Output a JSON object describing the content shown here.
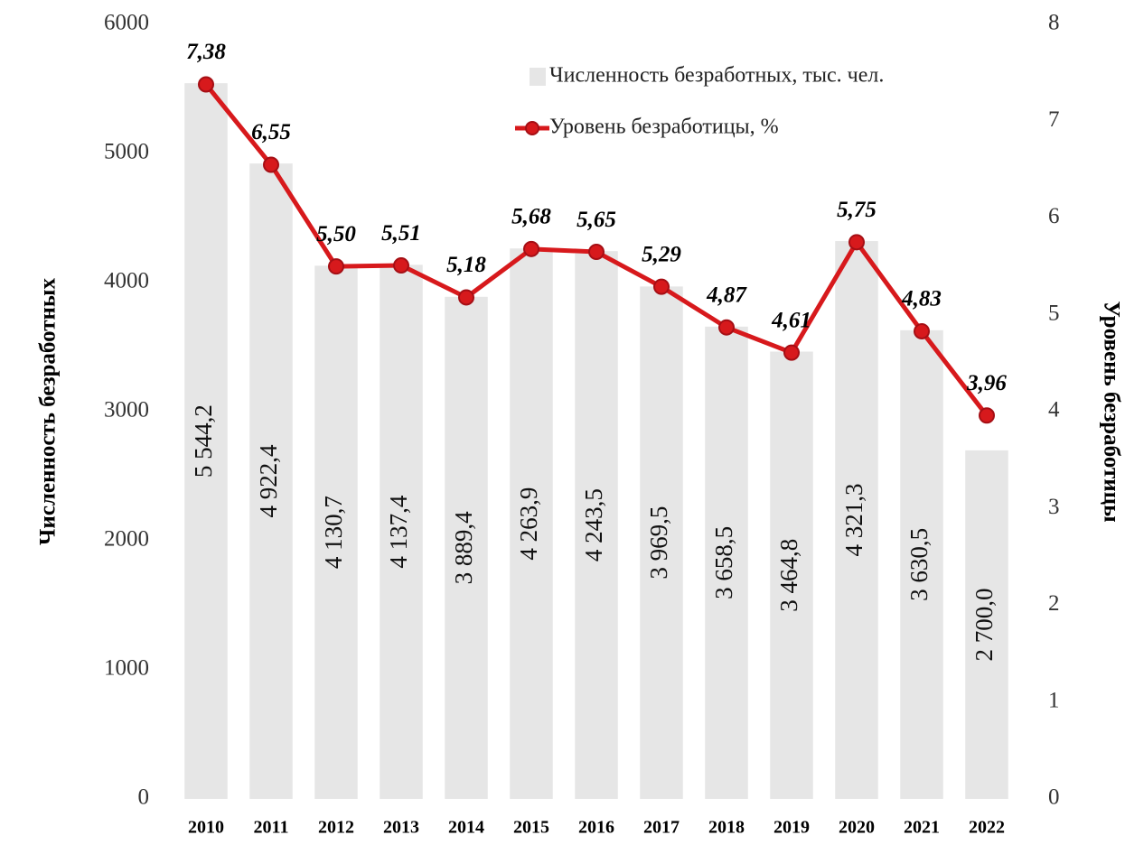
{
  "chart_data": {
    "type": "bar_line",
    "categories": [
      "2010",
      "2011",
      "2012",
      "2013",
      "2014",
      "2015",
      "2016",
      "2017",
      "2018",
      "2019",
      "2020",
      "2021",
      "2022"
    ],
    "series": [
      {
        "name": "Численность безработных, тыс. чел.",
        "type": "bar",
        "color": "#e6e6e6",
        "values": [
          5544.2,
          4922.4,
          4130.7,
          4137.4,
          3889.4,
          4263.9,
          4243.5,
          3969.5,
          3658.5,
          3464.8,
          4321.3,
          3630.5,
          2700.0
        ],
        "value_labels": [
          "5 544,2",
          "4 922,4",
          "4 130,7",
          "4 137,4",
          "3 889,4",
          "4 263,9",
          "4 243,5",
          "3 969,5",
          "3 658,5",
          "3 464,8",
          "4 321,3",
          "3 630,5",
          "2 700,0"
        ]
      },
      {
        "name": "Уровень безработицы, %",
        "type": "line",
        "axis": "y2",
        "color": "#d7191c",
        "values": [
          7.38,
          6.55,
          5.5,
          5.51,
          5.18,
          5.68,
          5.65,
          5.29,
          4.87,
          4.61,
          5.75,
          4.83,
          3.96
        ],
        "value_labels": [
          "7,38",
          "6,55",
          "5,50",
          "5,51",
          "5,18",
          "5,68",
          "5,65",
          "5,29",
          "4,87",
          "4,61",
          "5,75",
          "4,83",
          "3,96"
        ]
      }
    ],
    "ylabel": "Численность безработных",
    "y2label": "Уровень безработицы",
    "ylim": [
      0,
      6000
    ],
    "yticks": [
      0,
      1000,
      2000,
      3000,
      4000,
      5000,
      6000
    ],
    "y2lim": [
      0,
      8
    ],
    "y2ticks": [
      0,
      1,
      2,
      3,
      4,
      5,
      6,
      7,
      8
    ],
    "legend": "upper right",
    "grid": false
  }
}
